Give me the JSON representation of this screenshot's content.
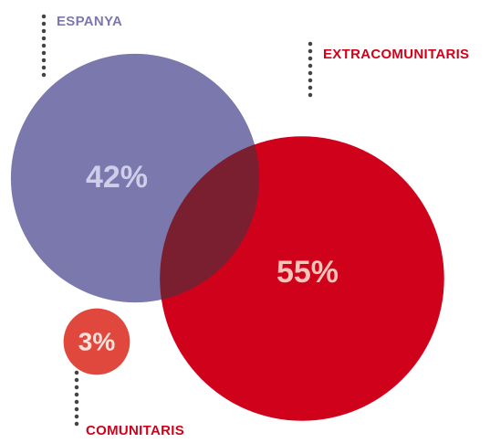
{
  "chart_data": {
    "type": "bubble",
    "categories": [
      "ESPANYA",
      "EXTRACOMUNITARIS",
      "COMUNITARIS"
    ],
    "values": [
      42,
      55,
      3
    ],
    "value_labels": [
      "42%",
      "55%",
      "3%"
    ],
    "colors": [
      "#7b78ad",
      "#d0021b",
      "#e0483e"
    ]
  }
}
